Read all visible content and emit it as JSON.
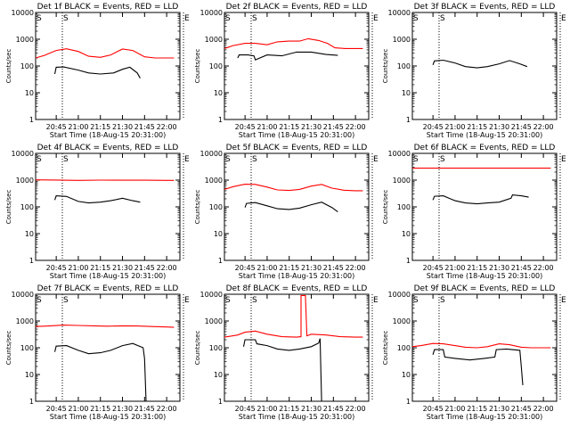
{
  "figure": {
    "ylabel": "Counts/sec",
    "xlabel": "Start Time (18-Aug-15 20:31:00)",
    "xticks": [
      "20:45",
      "21:00",
      "21:15",
      "21:30",
      "21:45",
      "22:00"
    ],
    "yticks": [
      "1",
      "10",
      "100",
      "1000",
      "10000"
    ],
    "marker_S": "S",
    "marker_E": "E",
    "colors": {
      "events": "#000000",
      "lld": "#ff0000"
    }
  },
  "chart_data": [
    {
      "type": "line",
      "title": "Det 1f  BLACK = Events, RED = LLD",
      "yscale": "log",
      "ylim": [
        1,
        10000
      ],
      "xlim": [
        "20:31",
        "22:09"
      ],
      "series": [
        {
          "name": "Events",
          "color": "#000000",
          "x": [
            "20:44",
            "20:45",
            "20:50",
            "21:00",
            "21:07",
            "21:15",
            "21:24",
            "21:30",
            "21:35",
            "21:40",
            "21:42"
          ],
          "y": [
            50,
            90,
            92,
            70,
            55,
            50,
            55,
            75,
            90,
            55,
            35
          ]
        },
        {
          "name": "LLD",
          "color": "#ff0000",
          "x": [
            "20:31",
            "20:37",
            "20:45",
            "20:52",
            "21:00",
            "21:07",
            "21:15",
            "21:22",
            "21:30",
            "21:37",
            "21:45",
            "21:52",
            "22:00",
            "22:05"
          ],
          "y": [
            200,
            250,
            380,
            440,
            350,
            230,
            210,
            260,
            430,
            380,
            220,
            200,
            200,
            200
          ]
        }
      ]
    },
    {
      "type": "line",
      "title": "Det 2f  BLACK = Events, RED = LLD",
      "yscale": "log",
      "ylim": [
        1,
        10000
      ],
      "xlim": [
        "20:31",
        "22:09"
      ],
      "series": [
        {
          "name": "Events",
          "color": "#000000",
          "x": [
            "20:40",
            "20:41",
            "20:47",
            "20:51",
            "20:52",
            "21:00",
            "21:10",
            "21:20",
            "21:30",
            "21:40",
            "21:48"
          ],
          "y": [
            200,
            260,
            260,
            240,
            170,
            260,
            240,
            330,
            330,
            270,
            250
          ]
        },
        {
          "name": "LLD",
          "color": "#ff0000",
          "x": [
            "20:31",
            "20:37",
            "20:45",
            "20:52",
            "21:00",
            "21:07",
            "21:15",
            "21:22",
            "21:28",
            "21:35",
            "21:41",
            "21:46",
            "21:53",
            "22:00",
            "22:05"
          ],
          "y": [
            450,
            580,
            700,
            700,
            620,
            800,
            850,
            850,
            1050,
            900,
            700,
            480,
            450,
            450,
            450
          ]
        }
      ]
    },
    {
      "type": "line",
      "title": "Det 3f  BLACK = Events, RED = LLD",
      "yscale": "log",
      "ylim": [
        1,
        10000
      ],
      "xlim": [
        "20:31",
        "22:09"
      ],
      "series": [
        {
          "name": "Events",
          "color": "#000000",
          "x": [
            "20:45",
            "20:46",
            "20:52",
            "21:00",
            "21:07",
            "21:15",
            "21:22",
            "21:30",
            "21:37",
            "21:44",
            "21:49"
          ],
          "y": [
            110,
            155,
            165,
            130,
            95,
            85,
            95,
            120,
            160,
            120,
            95
          ]
        }
      ]
    },
    {
      "type": "line",
      "title": "Det 4f  BLACK = Events, RED = LLD",
      "yscale": "log",
      "ylim": [
        1,
        10000
      ],
      "xlim": [
        "20:31",
        "22:09"
      ],
      "series": [
        {
          "name": "Events",
          "color": "#000000",
          "x": [
            "20:44",
            "20:45",
            "20:52",
            "21:00",
            "21:07",
            "21:15",
            "21:22",
            "21:30",
            "21:37",
            "21:42"
          ],
          "y": [
            180,
            260,
            245,
            160,
            140,
            150,
            170,
            210,
            170,
            150
          ]
        },
        {
          "name": "LLD",
          "color": "#ff0000",
          "x": [
            "20:31",
            "20:45",
            "21:00",
            "21:15",
            "21:30",
            "21:45",
            "22:00",
            "22:05"
          ],
          "y": [
            1020,
            1010,
            980,
            1000,
            990,
            990,
            980,
            980
          ]
        }
      ]
    },
    {
      "type": "line",
      "title": "Det 5f  BLACK = Events, RED = LLD",
      "yscale": "log",
      "ylim": [
        1,
        10000
      ],
      "xlim": [
        "20:31",
        "22:09"
      ],
      "series": [
        {
          "name": "Events",
          "color": "#000000",
          "x": [
            "20:45",
            "20:46",
            "20:52",
            "21:00",
            "21:07",
            "21:15",
            "21:22",
            "21:30",
            "21:37",
            "21:44",
            "21:48"
          ],
          "y": [
            95,
            135,
            145,
            110,
            85,
            80,
            90,
            120,
            150,
            95,
            65
          ]
        },
        {
          "name": "LLD",
          "color": "#ff0000",
          "x": [
            "20:31",
            "20:37",
            "20:45",
            "20:52",
            "21:00",
            "21:07",
            "21:15",
            "21:22",
            "21:30",
            "21:37",
            "21:44",
            "21:52",
            "22:00",
            "22:05"
          ],
          "y": [
            450,
            570,
            700,
            690,
            550,
            430,
            410,
            450,
            600,
            690,
            500,
            420,
            400,
            400
          ]
        }
      ]
    },
    {
      "type": "line",
      "title": "Det 6f  BLACK = Events, RED = LLD",
      "yscale": "log",
      "ylim": [
        1,
        10000
      ],
      "xlim": [
        "20:31",
        "22:09"
      ],
      "series": [
        {
          "name": "Events",
          "color": "#000000",
          "x": [
            "20:45",
            "20:46",
            "20:52",
            "21:00",
            "21:07",
            "21:15",
            "21:22",
            "21:30",
            "21:38",
            "21:39",
            "21:45",
            "21:50"
          ],
          "y": [
            180,
            250,
            260,
            170,
            140,
            130,
            140,
            150,
            210,
            280,
            260,
            230
          ]
        },
        {
          "name": "LLD",
          "color": "#ff0000",
          "x": [
            "20:31",
            "22:05"
          ],
          "y": [
            2800,
            2800
          ]
        }
      ]
    },
    {
      "type": "line",
      "title": "Det 7f  BLACK = Events, RED = LLD",
      "yscale": "log",
      "ylim": [
        1,
        10000
      ],
      "xlim": [
        "20:31",
        "22:09"
      ],
      "series": [
        {
          "name": "Events",
          "color": "#000000",
          "x": [
            "20:44",
            "20:45",
            "20:52",
            "21:00",
            "21:07",
            "21:15",
            "21:22",
            "21:30",
            "21:37",
            "21:44",
            "21:45",
            "21:46"
          ],
          "y": [
            70,
            115,
            120,
            80,
            60,
            65,
            80,
            120,
            145,
            100,
            40,
            1
          ]
        },
        {
          "name": "LLD",
          "color": "#ff0000",
          "x": [
            "20:31",
            "20:40",
            "20:50",
            "21:00",
            "21:10",
            "21:20",
            "21:30",
            "21:40",
            "21:50",
            "22:00",
            "22:05"
          ],
          "y": [
            620,
            650,
            700,
            680,
            660,
            640,
            660,
            650,
            620,
            600,
            580
          ]
        }
      ]
    },
    {
      "type": "line",
      "title": "Det 8f  BLACK = Events, RED = LLD",
      "yscale": "log",
      "ylim": [
        1,
        10000
      ],
      "xlim": [
        "20:31",
        "22:09"
      ],
      "series": [
        {
          "name": "Events",
          "color": "#000000",
          "x": [
            "20:44",
            "20:45",
            "20:52",
            "20:53",
            "21:00",
            "21:07",
            "21:15",
            "21:22",
            "21:30",
            "21:35",
            "21:36",
            "21:37",
            "21:38"
          ],
          "y": [
            110,
            200,
            200,
            140,
            120,
            90,
            80,
            90,
            110,
            150,
            220,
            1,
            1
          ]
        },
        {
          "name": "LLD",
          "color": "#ff0000",
          "x": [
            "20:31",
            "20:40",
            "20:45",
            "20:52",
            "21:00",
            "21:10",
            "21:20",
            "21:23",
            "21:23",
            "21:24",
            "21:26",
            "21:27",
            "21:30",
            "21:40",
            "21:50",
            "22:00",
            "22:05"
          ],
          "y": [
            250,
            300,
            380,
            420,
            320,
            260,
            250,
            260,
            9000,
            9000,
            9000,
            280,
            320,
            300,
            260,
            250,
            250
          ]
        }
      ]
    },
    {
      "type": "line",
      "title": "Det 9f  BLACK = Events, RED = LLD",
      "yscale": "log",
      "ylim": [
        1,
        10000
      ],
      "xlim": [
        "20:31",
        "22:09"
      ],
      "series": [
        {
          "name": "Events",
          "color": "#000000",
          "x": [
            "20:45",
            "20:46",
            "20:52",
            "20:53",
            "21:00",
            "21:10",
            "21:20",
            "21:27",
            "21:28",
            "21:35",
            "21:44",
            "21:45",
            "21:46"
          ],
          "y": [
            55,
            85,
            85,
            45,
            40,
            35,
            40,
            45,
            85,
            90,
            80,
            20,
            4
          ]
        },
        {
          "name": "LLD",
          "color": "#ff0000",
          "x": [
            "20:31",
            "20:37",
            "20:45",
            "20:52",
            "21:00",
            "21:07",
            "21:15",
            "21:22",
            "21:30",
            "21:37",
            "21:45",
            "21:52",
            "22:00",
            "22:05"
          ],
          "y": [
            110,
            120,
            145,
            140,
            120,
            105,
            100,
            110,
            140,
            130,
            105,
            100,
            100,
            100
          ]
        }
      ]
    }
  ]
}
